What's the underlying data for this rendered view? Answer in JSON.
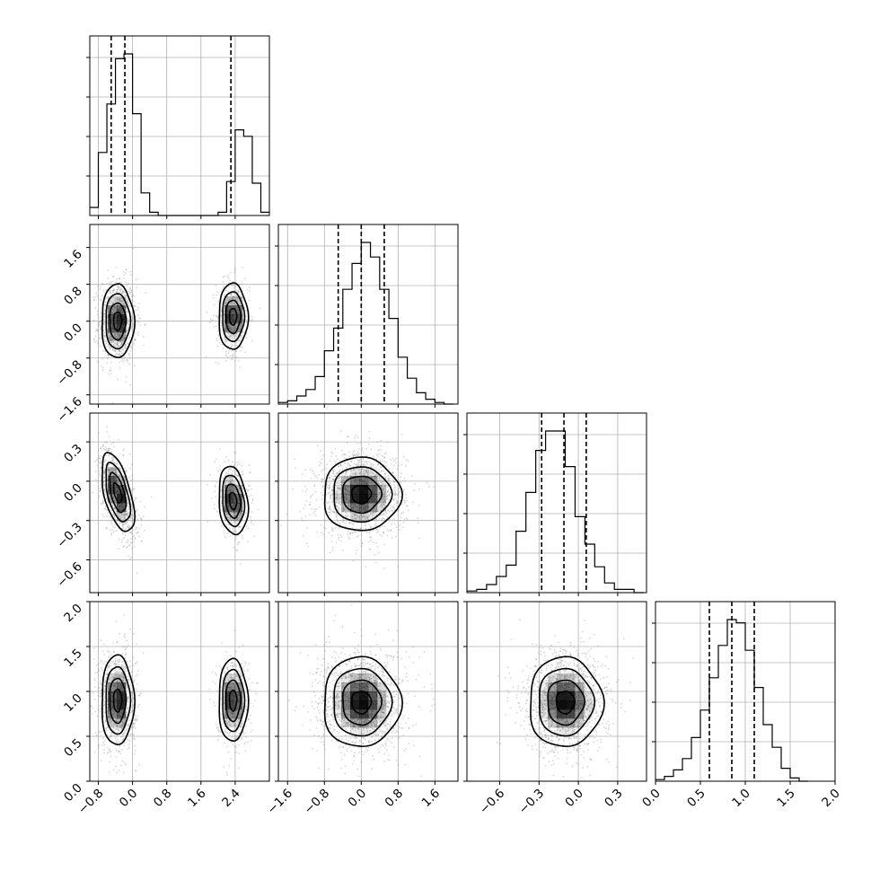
{
  "chart_data": {
    "type": "corner",
    "grid": true,
    "parameters": [
      {
        "index": 0,
        "range": [
          -1.0,
          3.2
        ],
        "ticks": [
          -0.8,
          0.0,
          0.8,
          1.6,
          2.4
        ],
        "tick_labels": [
          "−0.8",
          "0.0",
          "0.8",
          "1.6",
          "2.4"
        ],
        "quantiles": [
          -0.5,
          -0.18,
          2.3
        ]
      },
      {
        "index": 1,
        "range": [
          -1.8,
          2.1
        ],
        "ticks": [
          -1.6,
          -0.8,
          0.0,
          0.8,
          1.6
        ],
        "tick_labels": [
          "−1.6",
          "−0.8",
          "0.0",
          "0.8",
          "1.6"
        ],
        "quantiles": [
          -0.5,
          0.0,
          0.5
        ]
      },
      {
        "index": 2,
        "range": [
          -0.85,
          0.52
        ],
        "ticks": [
          -0.6,
          -0.3,
          0.0,
          0.3
        ],
        "tick_labels": [
          "−0.6",
          "−0.3",
          "0.0",
          "0.3"
        ],
        "quantiles": [
          -0.28,
          -0.11,
          0.06
        ]
      },
      {
        "index": 3,
        "range": [
          0.0,
          2.0
        ],
        "ticks": [
          0.0,
          0.5,
          1.0,
          1.5,
          2.0
        ],
        "tick_labels": [
          "0.0",
          "0.5",
          "1.0",
          "1.5",
          "2.0"
        ],
        "quantiles": [
          0.6,
          0.85,
          1.1
        ]
      }
    ],
    "histograms": [
      {
        "param": 0,
        "bin_edges": [
          -1.0,
          -0.8,
          -0.6,
          -0.4,
          -0.2,
          0.0,
          0.2,
          0.4,
          0.6,
          0.8,
          1.0,
          1.2,
          1.4,
          1.6,
          1.8,
          2.0,
          2.2,
          2.4,
          2.6,
          2.8,
          3.0,
          3.2
        ],
        "counts": [
          0.05,
          0.39,
          0.69,
          0.97,
          1.0,
          0.63,
          0.14,
          0.02,
          0.0,
          0.0,
          0.0,
          0.0,
          0.0,
          0.0,
          0.0,
          0.02,
          0.21,
          0.53,
          0.49,
          0.2,
          0.02
        ]
      },
      {
        "param": 1,
        "bin_edges": [
          -1.8,
          -1.6,
          -1.4,
          -1.2,
          -1.0,
          -0.8,
          -0.6,
          -0.4,
          -0.2,
          0.0,
          0.2,
          0.4,
          0.6,
          0.8,
          1.0,
          1.2,
          1.4,
          1.6,
          1.8,
          2.0
        ],
        "counts": [
          0.01,
          0.02,
          0.05,
          0.09,
          0.17,
          0.33,
          0.47,
          0.71,
          0.87,
          1.0,
          0.91,
          0.71,
          0.53,
          0.29,
          0.16,
          0.07,
          0.03,
          0.01,
          0.0
        ]
      },
      {
        "param": 2,
        "bin_edges": [
          -0.85,
          -0.775,
          -0.7,
          -0.625,
          -0.55,
          -0.475,
          -0.4,
          -0.325,
          -0.25,
          -0.175,
          -0.1,
          -0.025,
          0.05,
          0.125,
          0.2,
          0.275,
          0.35,
          0.425,
          0.5
        ],
        "counts": [
          0.01,
          0.02,
          0.05,
          0.1,
          0.17,
          0.38,
          0.62,
          0.88,
          1.0,
          1.0,
          0.78,
          0.47,
          0.3,
          0.16,
          0.06,
          0.02,
          0.02,
          0.0
        ]
      },
      {
        "param": 3,
        "bin_edges": [
          0.0,
          0.1,
          0.2,
          0.3,
          0.4,
          0.5,
          0.6,
          0.7,
          0.8,
          0.9,
          1.0,
          1.1,
          1.2,
          1.3,
          1.4,
          1.5,
          1.6,
          1.7
        ],
        "counts": [
          0.01,
          0.03,
          0.07,
          0.14,
          0.27,
          0.44,
          0.64,
          0.84,
          1.0,
          0.98,
          0.81,
          0.58,
          0.35,
          0.21,
          0.08,
          0.02,
          0.0
        ]
      }
    ],
    "joint_distributions": [
      {
        "x_param": 0,
        "y_param": 1,
        "modes": [
          {
            "mean": [
              -0.35,
              0.0
            ],
            "sd": [
              0.19,
              0.4
            ],
            "rho": 0.0,
            "weight": 0.68
          },
          {
            "mean": [
              2.35,
              0.1
            ],
            "sd": [
              0.17,
              0.36
            ],
            "rho": 0.0,
            "weight": 0.32
          }
        ]
      },
      {
        "x_param": 0,
        "y_param": 2,
        "modes": [
          {
            "mean": [
              -0.35,
              -0.09
            ],
            "sd": [
              0.19,
              0.15
            ],
            "rho": -0.55,
            "weight": 0.68
          },
          {
            "mean": [
              2.35,
              -0.15
            ],
            "sd": [
              0.17,
              0.13
            ],
            "rho": -0.2,
            "weight": 0.32
          }
        ]
      },
      {
        "x_param": 1,
        "y_param": 2,
        "modes": [
          {
            "mean": [
              0.0,
              -0.1
            ],
            "sd": [
              0.42,
              0.14
            ],
            "rho": 0.0,
            "weight": 1.0
          }
        ]
      },
      {
        "x_param": 0,
        "y_param": 3,
        "modes": [
          {
            "mean": [
              -0.35,
              0.9
            ],
            "sd": [
              0.19,
              0.25
            ],
            "rho": 0.0,
            "weight": 0.68
          },
          {
            "mean": [
              2.35,
              0.9
            ],
            "sd": [
              0.17,
              0.23
            ],
            "rho": 0.0,
            "weight": 0.32
          }
        ]
      },
      {
        "x_param": 1,
        "y_param": 3,
        "modes": [
          {
            "mean": [
              0.0,
              0.88
            ],
            "sd": [
              0.42,
              0.25
            ],
            "rho": 0.0,
            "weight": 1.0
          }
        ]
      },
      {
        "x_param": 2,
        "y_param": 3,
        "modes": [
          {
            "mean": [
              -0.1,
              0.88
            ],
            "sd": [
              0.14,
              0.25
            ],
            "rho": 0.0,
            "weight": 1.0
          }
        ]
      }
    ],
    "contour_levels_sigma": [
      0.5,
      1.0,
      1.5,
      2.0
    ],
    "colors": {
      "contour": "#000000",
      "density": "#000000",
      "scatter": "#8c8c8c",
      "grid": "#b0b0b0"
    }
  }
}
